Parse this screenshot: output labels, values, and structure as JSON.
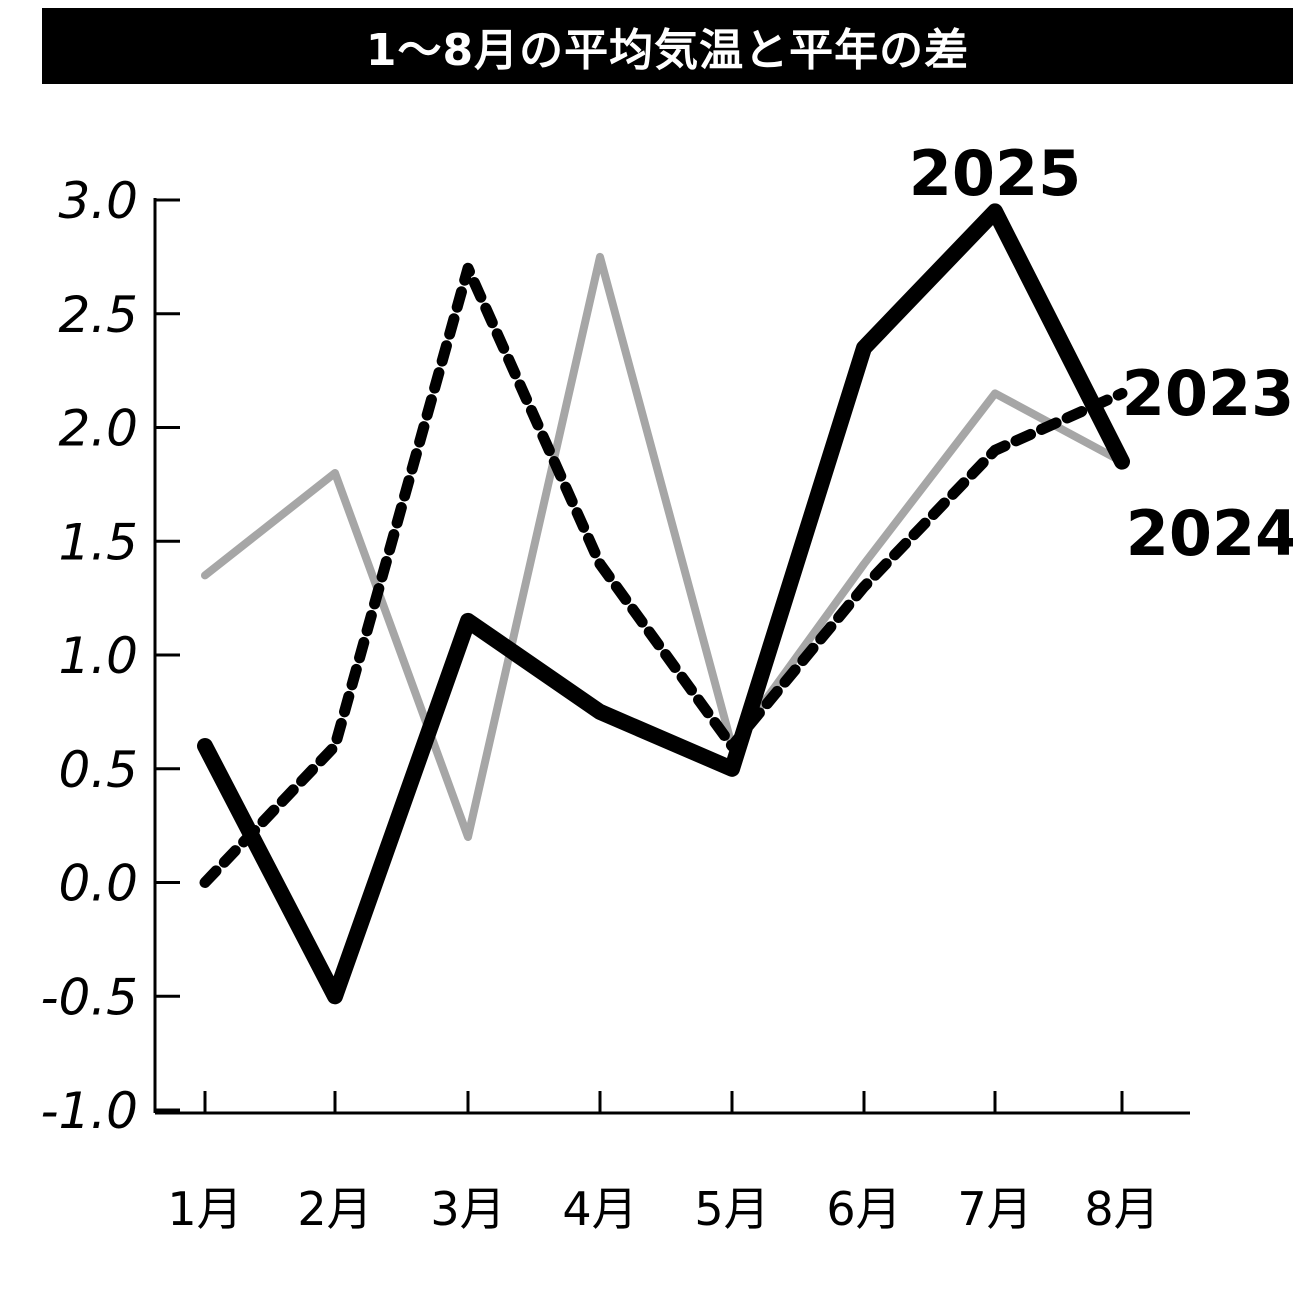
{
  "chart_data": {
    "type": "line",
    "title": "1～8月の平均気温と平年の差",
    "categories": [
      "1月",
      "2月",
      "3月",
      "4月",
      "5月",
      "6月",
      "7月",
      "8月"
    ],
    "yticks": [
      "3.0",
      "2.5",
      "2.0",
      "1.5",
      "1.0",
      "0.5",
      "0.0",
      "-0.5",
      "-1.0"
    ],
    "ylim": [
      -1.0,
      3.0
    ],
    "grid": false,
    "series": [
      {
        "name": "2023",
        "style": "dashed",
        "color": "#000000",
        "values": [
          0.0,
          0.6,
          2.7,
          1.4,
          0.6,
          1.3,
          1.9,
          2.15
        ]
      },
      {
        "name": "2024",
        "style": "solid-thin",
        "color": "#a6a6a6",
        "values": [
          1.35,
          1.8,
          0.2,
          2.75,
          0.6,
          1.4,
          2.15,
          1.85
        ]
      },
      {
        "name": "2025",
        "style": "solid-thick",
        "color": "#000000",
        "values": [
          0.6,
          -0.5,
          1.15,
          0.75,
          0.5,
          2.35,
          2.95,
          1.85
        ]
      }
    ]
  }
}
